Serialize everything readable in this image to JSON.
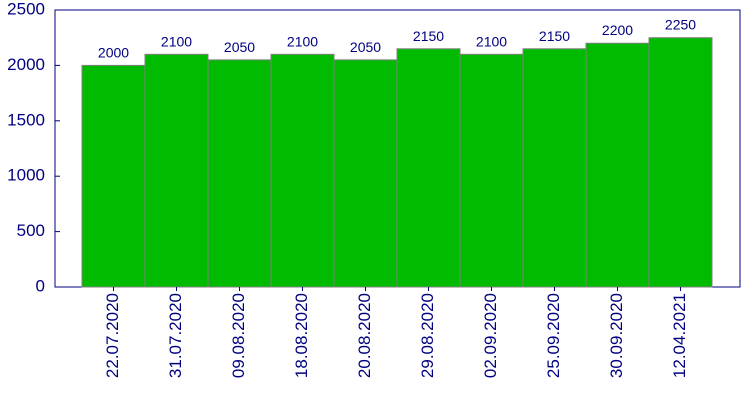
{
  "chart_data": {
    "type": "bar",
    "categories": [
      "22.07.2020",
      "31.07.2020",
      "09.08.2020",
      "18.08.2020",
      "20.08.2020",
      "29.08.2020",
      "02.09.2020",
      "25.09.2020",
      "30.09.2020",
      "12.04.2021"
    ],
    "values": [
      2000,
      2100,
      2050,
      2100,
      2050,
      2150,
      2100,
      2150,
      2200,
      2250
    ],
    "color": "#00bb00",
    "ylim": [
      0,
      2500
    ],
    "yticks": [
      0,
      500,
      1000,
      1500,
      2000,
      2500
    ],
    "grid": false
  }
}
